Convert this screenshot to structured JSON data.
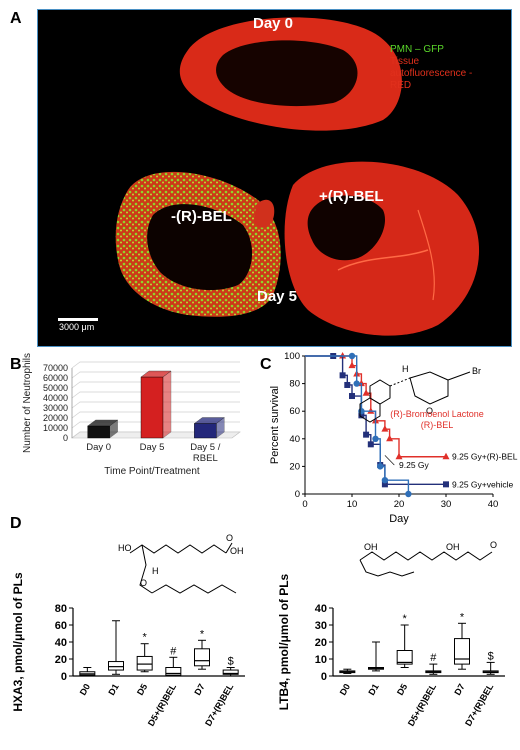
{
  "panel_labels": {
    "a": "A",
    "b": "B",
    "c": "C",
    "d": "D"
  },
  "micrograph": {
    "day0_label": "Day 0",
    "minus_bel_label": "-(R)-BEL",
    "plus_bel_label": "+(R)-BEL",
    "day5_label": "Day 5",
    "legend_line1": "PMN – GFP",
    "legend_line2": "Tissue",
    "legend_line3": "autofluorescence -",
    "legend_line4": "RED",
    "scale_bar": "3000 μm",
    "colors": {
      "gfp": "#5ad62a",
      "tissue": "#e0301c",
      "background": "#000000",
      "border": "#4a90c4"
    }
  },
  "chart_data": [
    {
      "id": "B",
      "type": "bar",
      "categories": [
        "Day 0",
        "Day 5",
        "Day 5 /\nRBEL"
      ],
      "category_lines": [
        [
          "Day 0"
        ],
        [
          "Day 5"
        ],
        [
          "Day 5 /",
          "RBEL"
        ]
      ],
      "values": [
        12000,
        61000,
        14500
      ],
      "colors": [
        "#111111",
        "#d42020",
        "#23277a"
      ],
      "ylabel": "Number of Neutrophils",
      "xlabel": "Time Point/Treatment",
      "ylim": [
        0,
        70000
      ],
      "yticks": [
        0,
        10000,
        20000,
        30000,
        40000,
        50000,
        60000,
        70000
      ],
      "style": "3d",
      "grid": true
    },
    {
      "id": "C",
      "type": "line",
      "step": true,
      "ylabel": "Percent survival",
      "xlabel": "Day",
      "xlim": [
        0,
        40
      ],
      "ylim": [
        0,
        100
      ],
      "xticks": [
        0,
        10,
        20,
        30,
        40
      ],
      "yticks": [
        0,
        20,
        40,
        60,
        80,
        100
      ],
      "series": [
        {
          "name": "9.25 Gy+(R)-BEL",
          "color": "#e0302a",
          "marker": "triangle",
          "x": [
            0,
            8,
            10,
            11,
            12,
            13,
            14,
            15,
            17,
            18,
            20,
            30
          ],
          "y": [
            100,
            100,
            93,
            87,
            80,
            73,
            60,
            53,
            47,
            40,
            27,
            27
          ]
        },
        {
          "name": "9.25 Gy+vehicle",
          "color": "#23307a",
          "marker": "square",
          "x": [
            0,
            6,
            8,
            9,
            10,
            12,
            13,
            14,
            16,
            17,
            30
          ],
          "y": [
            100,
            100,
            86,
            79,
            71,
            57,
            43,
            36,
            21,
            7,
            7
          ]
        },
        {
          "name": "",
          "color": "#2f6fb8",
          "marker": "circle",
          "x": [
            0,
            10,
            11,
            12,
            15,
            16,
            17,
            22
          ],
          "y": [
            100,
            100,
            80,
            60,
            40,
            20,
            10,
            0
          ]
        }
      ],
      "annotations": {
        "dose": "9.25 Gy",
        "compound_line1": "(R)-Bromoenol Lactone",
        "compound_line2": "(R)-BEL",
        "atom_h": "H",
        "atom_br": "Br",
        "atom_o": "O"
      }
    },
    {
      "id": "D-left",
      "type": "box",
      "categories": [
        "D0",
        "D1",
        "D5",
        "D5+(R)BEL",
        "D7",
        "D7+(R)BEL"
      ],
      "ylabel": "HXA3, pmol/μmol of PLs",
      "ylim": [
        0,
        80
      ],
      "yticks": [
        0,
        20,
        40,
        60,
        80
      ],
      "boxes": [
        {
          "min": 0,
          "q1": 1,
          "median": 2.5,
          "q3": 5,
          "max": 10
        },
        {
          "min": 2,
          "q1": 7,
          "median": 11,
          "q3": 17,
          "max": 65
        },
        {
          "min": 5,
          "q1": 7,
          "median": 14,
          "q3": 23,
          "max": 38
        },
        {
          "min": 0,
          "q1": 1,
          "median": 3,
          "q3": 10,
          "max": 22
        },
        {
          "min": 8,
          "q1": 12,
          "median": 18,
          "q3": 32,
          "max": 42
        },
        {
          "min": 0,
          "q1": 2,
          "median": 3,
          "q3": 7,
          "max": 10
        }
      ],
      "markers": [
        "",
        "",
        "*",
        "#",
        "*",
        "$"
      ]
    },
    {
      "id": "D-right",
      "type": "box",
      "categories": [
        "D0",
        "D1",
        "D5",
        "D5+(R)BEL",
        "D7",
        "D7+(R)BEL"
      ],
      "ylabel": "LTB4, pmol/μmol of PLs",
      "ylim": [
        0,
        40
      ],
      "yticks": [
        0,
        10,
        20,
        30,
        40
      ],
      "boxes": [
        {
          "min": 1.5,
          "q1": 2,
          "median": 2.5,
          "q3": 3,
          "max": 4
        },
        {
          "min": 3,
          "q1": 4,
          "median": 4.5,
          "q3": 5,
          "max": 20
        },
        {
          "min": 5,
          "q1": 7,
          "median": 8,
          "q3": 15,
          "max": 30
        },
        {
          "min": 1,
          "q1": 2,
          "median": 2.5,
          "q3": 3,
          "max": 7
        },
        {
          "min": 4,
          "q1": 7,
          "median": 10,
          "q3": 22,
          "max": 31
        },
        {
          "min": 1,
          "q1": 2,
          "median": 2.3,
          "q3": 3,
          "max": 8
        }
      ],
      "markers": [
        "",
        "",
        "*",
        "#",
        "*",
        "$"
      ]
    }
  ],
  "structures": {
    "hxa3_oh": "HO",
    "hxa3_oh2": "OH",
    "hxa3_o": "O",
    "hxa3_h": "H",
    "ltb4_oh1": "OH",
    "ltb4_oh2": "OH",
    "ltb4_o": "O"
  }
}
